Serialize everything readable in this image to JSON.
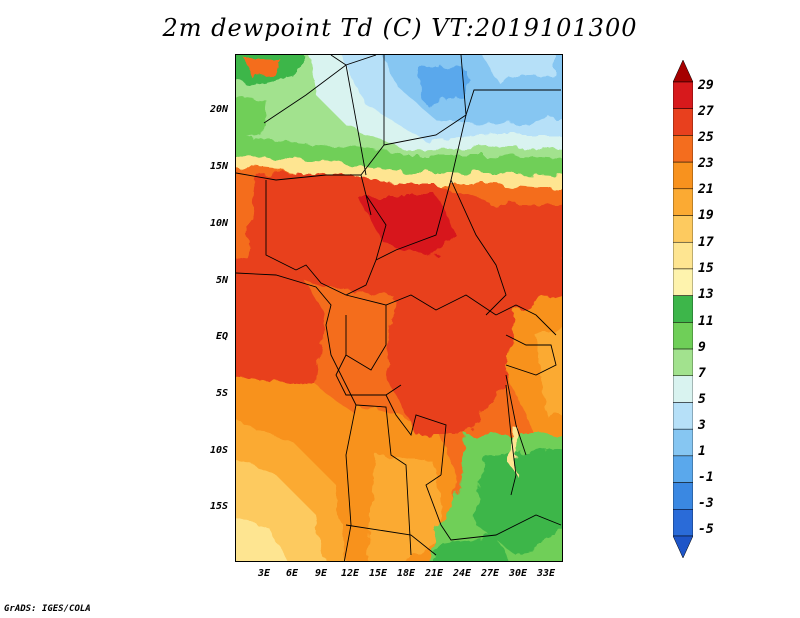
{
  "title": "2m dewpoint Td (C) VT:2019101300",
  "footer": "GrADS: IGES/COLA",
  "y_axis_labels": [
    "20N",
    "15N",
    "10N",
    "5N",
    "EQ",
    "5S",
    "10S",
    "15S"
  ],
  "x_axis_labels": [
    "3E",
    "6E",
    "9E",
    "12E",
    "15E",
    "18E",
    "21E",
    "24E",
    "27E",
    "30E",
    "33E"
  ],
  "colorbar": {
    "labels": [
      "29",
      "27",
      "25",
      "23",
      "21",
      "19",
      "17",
      "15",
      "13",
      "11",
      "9",
      "7",
      "5",
      "3",
      "1",
      "-1",
      "-3",
      "-5"
    ],
    "colors": [
      "#a50000",
      "#d7191c",
      "#e8401e",
      "#f46d1e",
      "#f8921e",
      "#fbaa33",
      "#fdca5f",
      "#fee591",
      "#fef3ad",
      "#3db64a",
      "#6fcf58",
      "#a2e28e",
      "#d9f3f0",
      "#b6e0f8",
      "#86c6f2",
      "#5aa8ec",
      "#3a88e2",
      "#2a6bd8",
      "#1e55c8"
    ]
  }
}
